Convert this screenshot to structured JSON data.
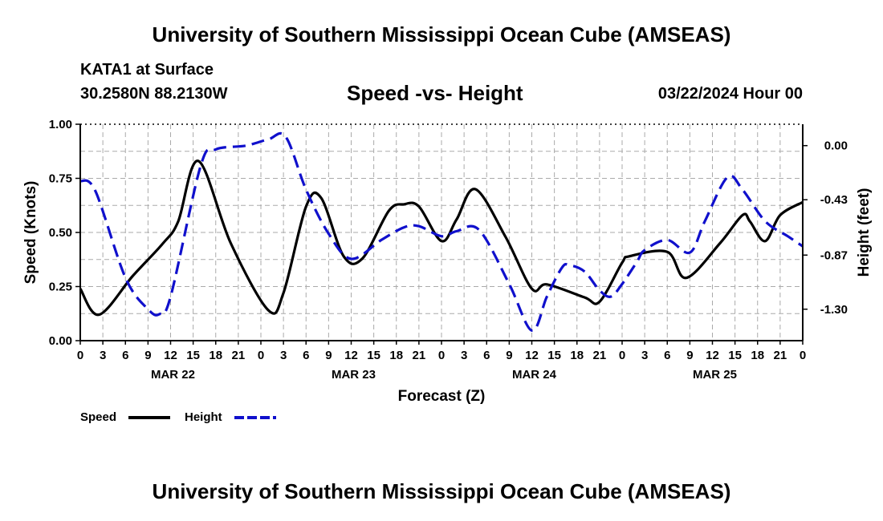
{
  "header": {
    "title": "University of Southern Mississippi Ocean Cube (AMSEAS)",
    "station": "KATA1 at Surface",
    "coords": "30.2580N  88.2130W",
    "subtitle": "Speed -vs- Height",
    "datetime": "03/22/2024 Hour 00",
    "footer_title": "University of Southern Mississippi Ocean Cube (AMSEAS)"
  },
  "colors": {
    "speed": "#000000",
    "height": "#1010cc",
    "grid": "#aaaaaa"
  },
  "chart_data": {
    "type": "line",
    "title": "Speed -vs- Height",
    "xlabel": "Forecast (Z)",
    "ylabel": "Speed (Knots)",
    "y2label": "Height (feet)",
    "x_ticks": [
      "0",
      "3",
      "6",
      "9",
      "12",
      "15",
      "18",
      "21",
      "0",
      "3",
      "6",
      "9",
      "12",
      "15",
      "18",
      "21",
      "0",
      "3",
      "6",
      "9",
      "12",
      "15",
      "18",
      "21",
      "0",
      "3",
      "6",
      "9",
      "12",
      "15",
      "18",
      "21",
      "0"
    ],
    "day_labels": [
      {
        "text": "MAR 22",
        "hour": 12
      },
      {
        "text": "MAR 23",
        "hour": 36
      },
      {
        "text": "MAR 24",
        "hour": 60
      },
      {
        "text": "MAR 25",
        "hour": 84
      }
    ],
    "xlim": [
      0,
      96
    ],
    "ylim": [
      0,
      1.0
    ],
    "y_ticks": [
      "0.00",
      "0.25",
      "0.50",
      "0.75",
      "1.00"
    ],
    "y2lim": [
      -1.55,
      0.17
    ],
    "y2_ticks": [
      "0.00",
      "-0.43",
      "-0.87",
      "-1.30"
    ],
    "legend": "bottom-left",
    "grid": true,
    "series": [
      {
        "name": "Speed",
        "axis": "left",
        "style": "solid",
        "x": [
          0,
          2.5,
          7,
          11,
          13,
          15.7,
          20,
          25,
          27,
          30,
          32,
          35,
          37.5,
          41,
          43,
          45,
          48,
          50,
          52.5,
          56.5,
          60,
          62,
          67,
          69,
          72,
          73,
          78,
          80.5,
          85,
          88,
          89,
          91,
          93,
          96
        ],
        "y": [
          0.24,
          0.12,
          0.3,
          0.45,
          0.55,
          0.83,
          0.45,
          0.14,
          0.22,
          0.62,
          0.66,
          0.39,
          0.38,
          0.6,
          0.63,
          0.62,
          0.46,
          0.56,
          0.7,
          0.48,
          0.24,
          0.26,
          0.2,
          0.18,
          0.36,
          0.39,
          0.41,
          0.29,
          0.45,
          0.58,
          0.55,
          0.46,
          0.58,
          0.64
        ]
      },
      {
        "name": "Height",
        "axis": "right",
        "style": "dashed",
        "x": [
          0,
          2,
          6,
          9,
          10.5,
          12,
          16,
          18,
          22,
          25,
          27.3,
          30,
          33,
          36,
          40,
          43,
          45,
          48,
          50,
          53,
          57,
          60,
          62,
          64,
          65,
          67,
          69,
          70.5,
          72,
          74,
          75,
          78,
          81,
          83,
          86,
          88,
          91,
          94,
          96
        ],
        "y": [
          -0.28,
          -0.36,
          -1.05,
          -1.3,
          -1.34,
          -1.2,
          -0.16,
          -0.03,
          0.0,
          0.05,
          0.07,
          -0.35,
          -0.7,
          -0.9,
          -0.75,
          -0.65,
          -0.64,
          -0.72,
          -0.68,
          -0.67,
          -1.1,
          -1.47,
          -1.2,
          -0.97,
          -0.95,
          -1.0,
          -1.15,
          -1.2,
          -1.1,
          -0.92,
          -0.83,
          -0.75,
          -0.85,
          -0.6,
          -0.25,
          -0.35,
          -0.6,
          -0.72,
          -0.8
        ]
      }
    ]
  }
}
